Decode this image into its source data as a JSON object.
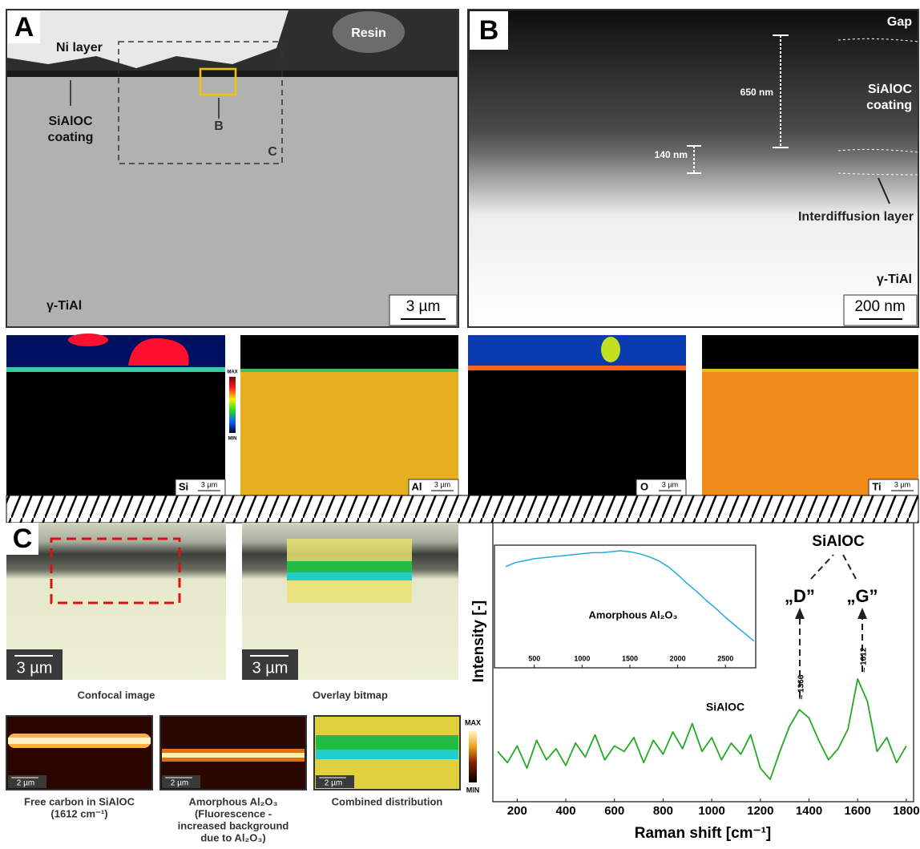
{
  "panel_a": {
    "letter": "A",
    "ni_layer": "Ni layer",
    "resin": "Resin",
    "coating": [
      "SiAlOC",
      "coating"
    ],
    "b_marker": "B",
    "c_marker": "C",
    "substrate": "γ-TiAl",
    "scale_bar": "3 µm"
  },
  "panel_b": {
    "letter": "B",
    "gap": "Gap",
    "thickness_coating": "650 nm",
    "coating": [
      "SiAlOC",
      "coating"
    ],
    "thickness_interdiffusion": "140 nm",
    "interdiffusion": "Interdiffusion layer",
    "substrate": "γ-TiAl",
    "scale_bar": "200 nm"
  },
  "eds_maps": {
    "colorbar_max": "MAX",
    "colorbar_min": "MIN",
    "maps": [
      {
        "element": "Si",
        "scale_bar": "3 µm"
      },
      {
        "element": "Al",
        "scale_bar": "3 µm"
      },
      {
        "element": "O",
        "scale_bar": "3 µm"
      },
      {
        "element": "Ti",
        "scale_bar": "3 µm"
      }
    ]
  },
  "panel_c": {
    "letter": "C",
    "images": [
      {
        "caption": "Confocal image",
        "scale_bar": "3 µm"
      },
      {
        "caption": "Overlay bitmap",
        "scale_bar": "3 µm"
      }
    ],
    "maps": [
      {
        "caption": [
          "Free carbon in SiAlOC",
          "(1612 cm⁻¹)"
        ],
        "scale_bar": "2 µm"
      },
      {
        "caption": [
          "Amorphous Al₂O₃",
          "(Fluorescence -",
          "increased background",
          "due to Al₂O₃)"
        ],
        "scale_bar": "2 µm"
      },
      {
        "caption": [
          "Combined distribution"
        ],
        "scale_bar": "2 µm"
      }
    ],
    "colorbar_max": "MAX",
    "colorbar_min": "MIN"
  },
  "chart_data": [
    {
      "type": "line",
      "x_label": "Raman shift [cm⁻¹]",
      "y_label": "Intensity [-]",
      "color": "#22aa22",
      "xlim": [
        100,
        1830
      ],
      "ylim": [
        0,
        100
      ],
      "xticks": [
        200,
        400,
        600,
        800,
        1000,
        1200,
        1400,
        1600,
        1800
      ],
      "x": [
        120,
        160,
        200,
        240,
        280,
        320,
        360,
        400,
        440,
        480,
        520,
        560,
        600,
        640,
        680,
        720,
        760,
        800,
        840,
        880,
        920,
        960,
        1000,
        1040,
        1080,
        1120,
        1160,
        1200,
        1240,
        1280,
        1320,
        1360,
        1400,
        1440,
        1480,
        1520,
        1560,
        1600,
        1640,
        1680,
        1720,
        1760,
        1800
      ],
      "values": [
        18,
        14,
        20,
        12,
        22,
        15,
        19,
        13,
        21,
        16,
        24,
        15,
        20,
        18,
        23,
        14,
        22,
        17,
        25,
        19,
        28,
        18,
        23,
        15,
        21,
        17,
        24,
        12,
        8,
        18,
        27,
        33,
        30,
        22,
        15,
        19,
        26,
        44,
        36,
        18,
        23,
        14,
        20
      ],
      "peak_group_label": "SiAlOC",
      "d_band": "„D”",
      "g_band": "„G”",
      "d_position": "≈ 1366",
      "g_position": "≈ 1612",
      "spectrum_label": "SiAlOC"
    },
    {
      "type": "line",
      "annotation": "Amorphous Al₂O₃",
      "color": "#22aadd",
      "xlim": [
        100,
        2800
      ],
      "ylim": [
        0,
        100
      ],
      "xticks": [
        500,
        1000,
        1500,
        2000,
        2500
      ],
      "x": [
        200,
        300,
        400,
        500,
        600,
        700,
        800,
        900,
        1000,
        1100,
        1200,
        1300,
        1400,
        1500,
        1600,
        1700,
        1800,
        1900,
        2000,
        2100,
        2200,
        2300,
        2400,
        2500,
        2600,
        2700,
        2800
      ],
      "values": [
        80,
        84,
        86,
        88,
        89,
        90,
        91,
        92,
        93,
        94,
        94,
        95,
        96,
        95,
        93,
        90,
        86,
        80,
        72,
        63,
        55,
        46,
        38,
        29,
        21,
        13,
        5
      ]
    }
  ]
}
